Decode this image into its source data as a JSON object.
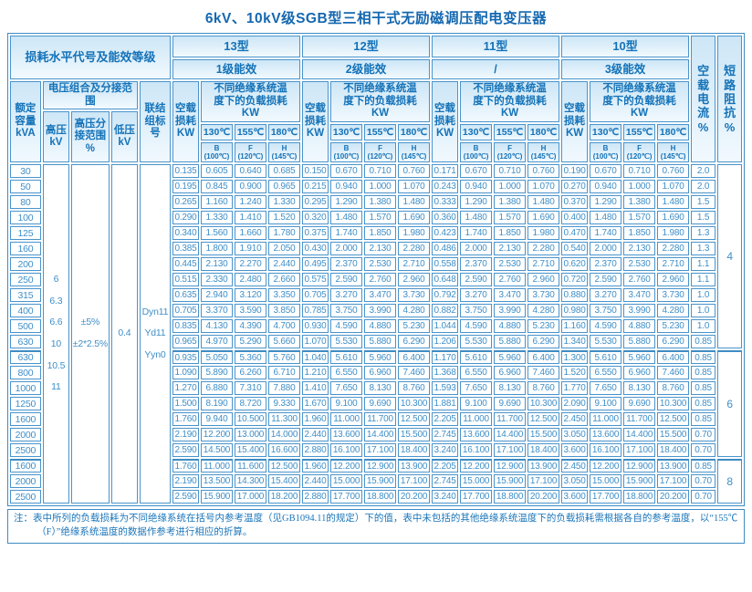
{
  "title": "6kV、10kV级SGB型三相干式无励磁调压配电变压器",
  "header": {
    "loss_level": "损耗水平代号及能效等级",
    "types": [
      {
        "label": "13型",
        "efficiency": "1级能效"
      },
      {
        "label": "12型",
        "efficiency": "2级能效"
      },
      {
        "label": "11型",
        "efficiency": "/"
      },
      {
        "label": "10型",
        "efficiency": "3级能效"
      }
    ],
    "voltage_group": "电压组合及分接范围",
    "rated_capacity": "额定\n容量\nkVA",
    "hv": "高压\nkV",
    "hv_tap": "高压分\n接范围\n%",
    "lv": "低压\nkV",
    "vector_group": "联结\n组标\n号",
    "no_load_loss": "空载\n损耗\nKW",
    "load_loss": "不同绝缘系统温\n度下的负载损耗\nKW",
    "temps": [
      "130℃",
      "155℃",
      "180℃"
    ],
    "temp_subs": [
      "B\n(100℃)",
      "F\n(120℃)",
      "H\n(145℃)"
    ],
    "no_load_current": "空载\n电流\n%",
    "short_circuit": "短路\n阻抗\n%"
  },
  "merged": {
    "hv_values": "6\n6.3\n6.6\n10\n10.5\n11",
    "hv_tap_values": "±5%\n±2*2.5%",
    "lv_value": "0.4",
    "vector_values": "Dyn11\nYd11\nYyn0"
  },
  "impedance_groups": [
    {
      "value": "4",
      "span": 12
    },
    {
      "value": "6",
      "span": 7
    },
    {
      "value": "8",
      "span": 3
    }
  ],
  "rows": [
    {
      "kva": "30",
      "v": [
        "0.135",
        "0.605",
        "0.640",
        "0.685",
        "0.150",
        "0.670",
        "0.710",
        "0.760",
        "0.171",
        "0.670",
        "0.710",
        "0.760",
        "0.190",
        "0.670",
        "0.710",
        "0.760"
      ],
      "c": "2.0"
    },
    {
      "kva": "50",
      "v": [
        "0.195",
        "0.845",
        "0.900",
        "0.965",
        "0.215",
        "0.940",
        "1.000",
        "1.070",
        "0.243",
        "0.940",
        "1.000",
        "1.070",
        "0.270",
        "0.940",
        "1.000",
        "1.070"
      ],
      "c": "2.0"
    },
    {
      "kva": "80",
      "v": [
        "0.265",
        "1.160",
        "1.240",
        "1.330",
        "0.295",
        "1.290",
        "1.380",
        "1.480",
        "0.333",
        "1.290",
        "1.380",
        "1.480",
        "0.370",
        "1.290",
        "1.380",
        "1.480"
      ],
      "c": "1.5"
    },
    {
      "kva": "100",
      "v": [
        "0.290",
        "1.330",
        "1.410",
        "1.520",
        "0.320",
        "1.480",
        "1.570",
        "1.690",
        "0.360",
        "1.480",
        "1.570",
        "1.690",
        "0.400",
        "1.480",
        "1.570",
        "1.690"
      ],
      "c": "1.5"
    },
    {
      "kva": "125",
      "v": [
        "0.340",
        "1.560",
        "1.660",
        "1.780",
        "0.375",
        "1.740",
        "1.850",
        "1.980",
        "0.423",
        "1.740",
        "1.850",
        "1.980",
        "0.470",
        "1.740",
        "1.850",
        "1.980"
      ],
      "c": "1.3"
    },
    {
      "kva": "160",
      "v": [
        "0.385",
        "1.800",
        "1.910",
        "2.050",
        "0.430",
        "2.000",
        "2.130",
        "2.280",
        "0.486",
        "2.000",
        "2.130",
        "2.280",
        "0.540",
        "2.000",
        "2.130",
        "2.280"
      ],
      "c": "1.3"
    },
    {
      "kva": "200",
      "v": [
        "0.445",
        "2.130",
        "2.270",
        "2.440",
        "0.495",
        "2.370",
        "2.530",
        "2.710",
        "0.558",
        "2.370",
        "2.530",
        "2.710",
        "0.620",
        "2.370",
        "2.530",
        "2.710"
      ],
      "c": "1.1"
    },
    {
      "kva": "250",
      "v": [
        "0.515",
        "2.330",
        "2.480",
        "2.660",
        "0.575",
        "2.590",
        "2.760",
        "2.960",
        "0.648",
        "2.590",
        "2.760",
        "2.960",
        "0.720",
        "2.590",
        "2.760",
        "2.960"
      ],
      "c": "1.1"
    },
    {
      "kva": "315",
      "v": [
        "0.635",
        "2.940",
        "3.120",
        "3.350",
        "0.705",
        "3.270",
        "3.470",
        "3.730",
        "0.792",
        "3.270",
        "3.470",
        "3.730",
        "0.880",
        "3.270",
        "3.470",
        "3.730"
      ],
      "c": "1.0"
    },
    {
      "kva": "400",
      "v": [
        "0.705",
        "3.370",
        "3.590",
        "3.850",
        "0.785",
        "3.750",
        "3.990",
        "4.280",
        "0.882",
        "3.750",
        "3.990",
        "4.280",
        "0.980",
        "3.750",
        "3.990",
        "4.280"
      ],
      "c": "1.0"
    },
    {
      "kva": "500",
      "v": [
        "0.835",
        "4.130",
        "4.390",
        "4.700",
        "0.930",
        "4.590",
        "4.880",
        "5.230",
        "1.044",
        "4.590",
        "4.880",
        "5.230",
        "1.160",
        "4.590",
        "4.880",
        "5.230"
      ],
      "c": "1.0"
    },
    {
      "kva": "630",
      "v": [
        "0.965",
        "4.970",
        "5.290",
        "5.660",
        "1.070",
        "5.530",
        "5.880",
        "6.290",
        "1.206",
        "5.530",
        "5.880",
        "6.290",
        "1.340",
        "5.530",
        "5.880",
        "6.290"
      ],
      "c": "0.85"
    },
    {
      "kva": "630",
      "v": [
        "0.935",
        "5.050",
        "5.360",
        "5.760",
        "1.040",
        "5.610",
        "5.960",
        "6.400",
        "1.170",
        "5.610",
        "5.960",
        "6.400",
        "1.300",
        "5.610",
        "5.960",
        "6.400"
      ],
      "c": "0.85"
    },
    {
      "kva": "800",
      "v": [
        "1.090",
        "5.890",
        "6.260",
        "6.710",
        "1.210",
        "6.550",
        "6.960",
        "7.460",
        "1.368",
        "6.550",
        "6.960",
        "7.460",
        "1.520",
        "6.550",
        "6.960",
        "7.460"
      ],
      "c": "0.85"
    },
    {
      "kva": "1000",
      "v": [
        "1.270",
        "6.880",
        "7.310",
        "7.880",
        "1.410",
        "7.650",
        "8.130",
        "8.760",
        "1.593",
        "7.650",
        "8.130",
        "8.760",
        "1.770",
        "7.650",
        "8.130",
        "8.760"
      ],
      "c": "0.85"
    },
    {
      "kva": "1250",
      "v": [
        "1.500",
        "8.190",
        "8.720",
        "9.330",
        "1.670",
        "9.100",
        "9.690",
        "10.300",
        "1.881",
        "9.100",
        "9.690",
        "10.300",
        "2.090",
        "9.100",
        "9.690",
        "10.300"
      ],
      "c": "0.85"
    },
    {
      "kva": "1600",
      "v": [
        "1.760",
        "9.940",
        "10.500",
        "11.300",
        "1.960",
        "11.000",
        "11.700",
        "12.500",
        "2.205",
        "11.000",
        "11.700",
        "12.500",
        "2.450",
        "11.000",
        "11.700",
        "12.500"
      ],
      "c": "0.85"
    },
    {
      "kva": "2000",
      "v": [
        "2.190",
        "12.200",
        "13.000",
        "14.000",
        "2.440",
        "13.600",
        "14.400",
        "15.500",
        "2.745",
        "13.600",
        "14.400",
        "15.500",
        "3.050",
        "13.600",
        "14.400",
        "15.500"
      ],
      "c": "0.70"
    },
    {
      "kva": "2500",
      "v": [
        "2.590",
        "14.500",
        "15.400",
        "16.600",
        "2.880",
        "16.100",
        "17.100",
        "18.400",
        "3.240",
        "16.100",
        "17.100",
        "18.400",
        "3.600",
        "16.100",
        "17.100",
        "18.400"
      ],
      "c": "0.70"
    },
    {
      "kva": "1600",
      "v": [
        "1.760",
        "11.000",
        "11.600",
        "12.500",
        "1.960",
        "12.200",
        "12.900",
        "13.900",
        "2.205",
        "12.200",
        "12.900",
        "13.900",
        "2.450",
        "12.200",
        "12.900",
        "13.900"
      ],
      "c": "0.85"
    },
    {
      "kva": "2000",
      "v": [
        "2.190",
        "13.500",
        "14.300",
        "15.400",
        "2.440",
        "15.000",
        "15.900",
        "17.100",
        "2.745",
        "15.000",
        "15.900",
        "17.100",
        "3.050",
        "15.000",
        "15.900",
        "17.100"
      ],
      "c": "0.70"
    },
    {
      "kva": "2500",
      "v": [
        "2.590",
        "15.900",
        "17.000",
        "18.200",
        "2.880",
        "17.700",
        "18.800",
        "20.200",
        "3.240",
        "17.700",
        "18.800",
        "20.200",
        "3.600",
        "17.700",
        "18.800",
        "20.200"
      ],
      "c": "0.70"
    }
  ],
  "note": "注：表中所列的负载损耗为不同绝缘系统在括号内参考温度（见GB1094.11的规定）下的值，表中未包括的其他绝缘系统温度下的负载损耗需根据各自的参考温度，以“155℃（F）”绝缘系统温度的数据作参考进行相应的折算。"
}
